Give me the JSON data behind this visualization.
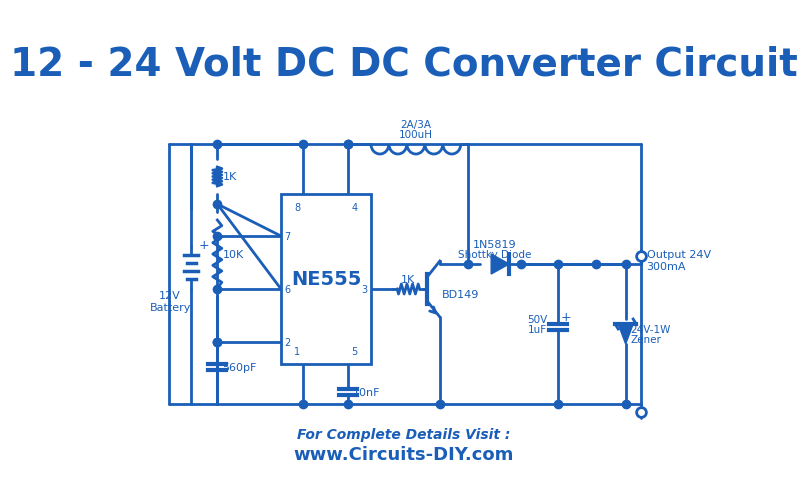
{
  "title": "12 - 24 Volt DC DC Converter Circuit",
  "title_color": "#1a5eb8",
  "title_fontsize": 28,
  "circuit_color": "#1a5eb8",
  "bg_color": "#ffffff",
  "footer_text1": "For Complete Details Visit :",
  "footer_text2": "www.Circuits-DIY.com",
  "footer_color": "#1a5eb8",
  "line_width": 2.0,
  "dot_size": 6
}
